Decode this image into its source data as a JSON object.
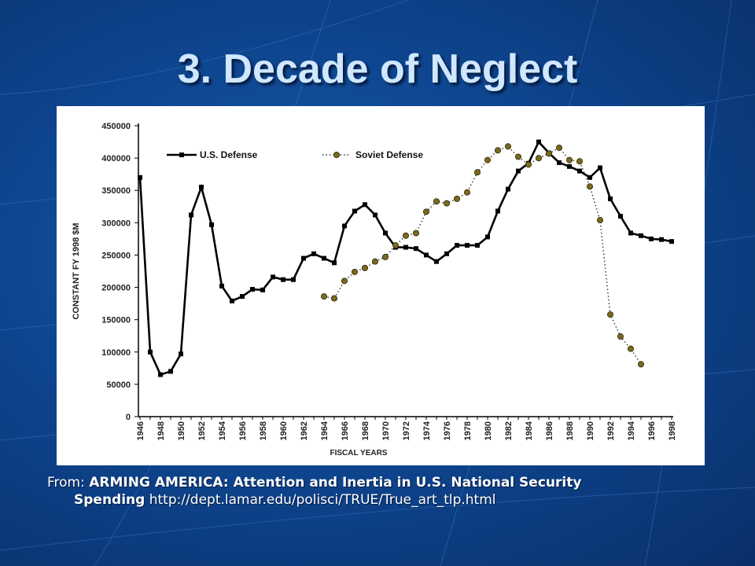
{
  "slide": {
    "title": "3. Decade of Neglect",
    "source_prefix": "From:",
    "source_title_line1": "ARMING AMERICA: Attention and Inertia in U.S. National Security",
    "source_title_line2": "Spending",
    "source_url": "http://dept.lamar.edu/polisci/TRUE/True_art_tlp.html"
  },
  "colors": {
    "background": "#0e4690",
    "title": "#cfe7ff",
    "us_line": "#000000",
    "soviet_marker": "#7a6a1e"
  },
  "chart_data": {
    "type": "line",
    "title": "",
    "xlabel": "FISCAL YEARS",
    "ylabel": "CONSTANT FY 1998 $M",
    "xlim": [
      1946,
      1998
    ],
    "ylim": [
      0,
      450000
    ],
    "y_ticks": [
      0,
      50000,
      100000,
      150000,
      200000,
      250000,
      300000,
      350000,
      400000,
      450000
    ],
    "x_ticks": [
      1946,
      1948,
      1950,
      1952,
      1954,
      1956,
      1958,
      1960,
      1962,
      1964,
      1966,
      1968,
      1970,
      1972,
      1974,
      1976,
      1978,
      1980,
      1982,
      1984,
      1986,
      1988,
      1990,
      1992,
      1994,
      1996,
      1998
    ],
    "grid": false,
    "legend_position": "top-left",
    "series": [
      {
        "name": "U.S. Defense",
        "style": "solid",
        "x": [
          1946,
          1947,
          1948,
          1949,
          1950,
          1951,
          1952,
          1953,
          1954,
          1955,
          1956,
          1957,
          1958,
          1959,
          1960,
          1961,
          1962,
          1963,
          1964,
          1965,
          1966,
          1967,
          1968,
          1969,
          1970,
          1971,
          1972,
          1973,
          1974,
          1975,
          1976,
          1977,
          1978,
          1979,
          1980,
          1981,
          1982,
          1983,
          1984,
          1985,
          1986,
          1987,
          1988,
          1989,
          1990,
          1991,
          1992,
          1993,
          1994,
          1995,
          1996,
          1997,
          1998
        ],
        "values": [
          370000,
          100000,
          65000,
          70000,
          97000,
          312000,
          355000,
          297000,
          202000,
          179000,
          186000,
          197000,
          196000,
          216000,
          212000,
          212000,
          245000,
          252000,
          245000,
          238000,
          295000,
          318000,
          328000,
          312000,
          284000,
          262000,
          262000,
          260000,
          250000,
          240000,
          252000,
          265000,
          265000,
          265000,
          278000,
          318000,
          352000,
          380000,
          392000,
          425000,
          408000,
          393000,
          387000,
          380000,
          370000,
          385000,
          337000,
          310000,
          284000,
          280000,
          275000,
          274000,
          271000
        ]
      },
      {
        "name": "Soviet Defense",
        "style": "dotted",
        "x": [
          1964,
          1965,
          1966,
          1967,
          1968,
          1969,
          1970,
          1971,
          1972,
          1973,
          1974,
          1975,
          1976,
          1977,
          1978,
          1979,
          1980,
          1981,
          1982,
          1983,
          1984,
          1985,
          1986,
          1987,
          1988,
          1989,
          1990,
          1991,
          1992,
          1993,
          1994,
          1995
        ],
        "values": [
          186000,
          183000,
          210000,
          224000,
          230000,
          240000,
          247000,
          265000,
          280000,
          284000,
          317000,
          333000,
          330000,
          337000,
          347000,
          378000,
          397000,
          412000,
          418000,
          402000,
          390000,
          400000,
          407000,
          416000,
          397000,
          395000,
          356000,
          304000,
          158000,
          124000,
          105000,
          81000
        ]
      }
    ]
  }
}
